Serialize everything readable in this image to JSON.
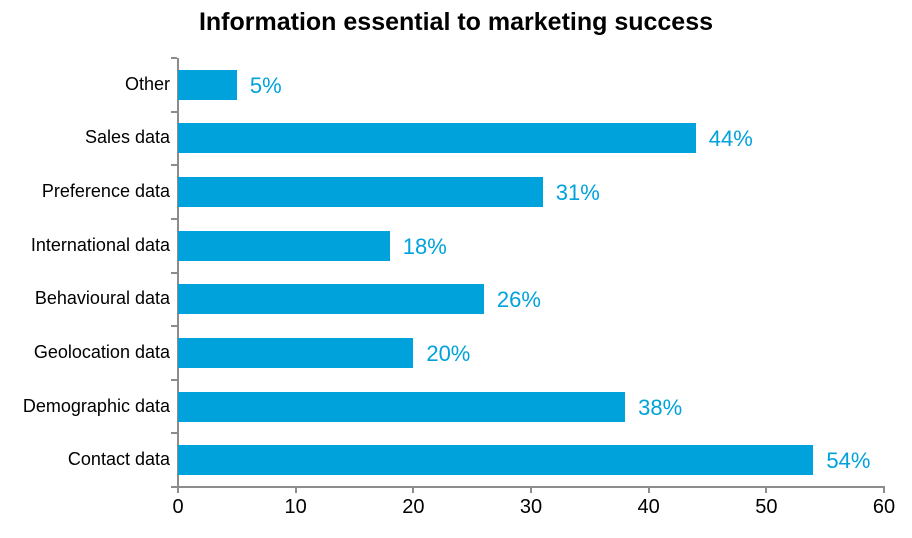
{
  "chart_data": {
    "type": "bar",
    "orientation": "horizontal",
    "title": "Information essential to marketing success",
    "categories": [
      "Other",
      "Sales data",
      "Preference data",
      "International data",
      "Behavioural data",
      "Geolocation data",
      "Demographic data",
      "Contact data"
    ],
    "values": [
      5,
      44,
      31,
      18,
      26,
      20,
      38,
      54
    ],
    "value_labels": [
      "5%",
      "44%",
      "31%",
      "18%",
      "26%",
      "20%",
      "38%",
      "54%"
    ],
    "xlabel": "",
    "ylabel": "",
    "xlim": [
      0,
      60
    ],
    "x_ticks": [
      0,
      10,
      20,
      30,
      40,
      50,
      60
    ],
    "x_tick_labels": [
      "0",
      "10",
      "20",
      "30",
      "40",
      "50",
      "60"
    ],
    "grid": false,
    "legend": false,
    "colors": {
      "bar": "#00A2DC",
      "value_label": "#00A2DC",
      "axis": "#8C8C8C",
      "title_text": "#000000",
      "tick_text": "#000000",
      "background": "#FFFFFF"
    }
  }
}
